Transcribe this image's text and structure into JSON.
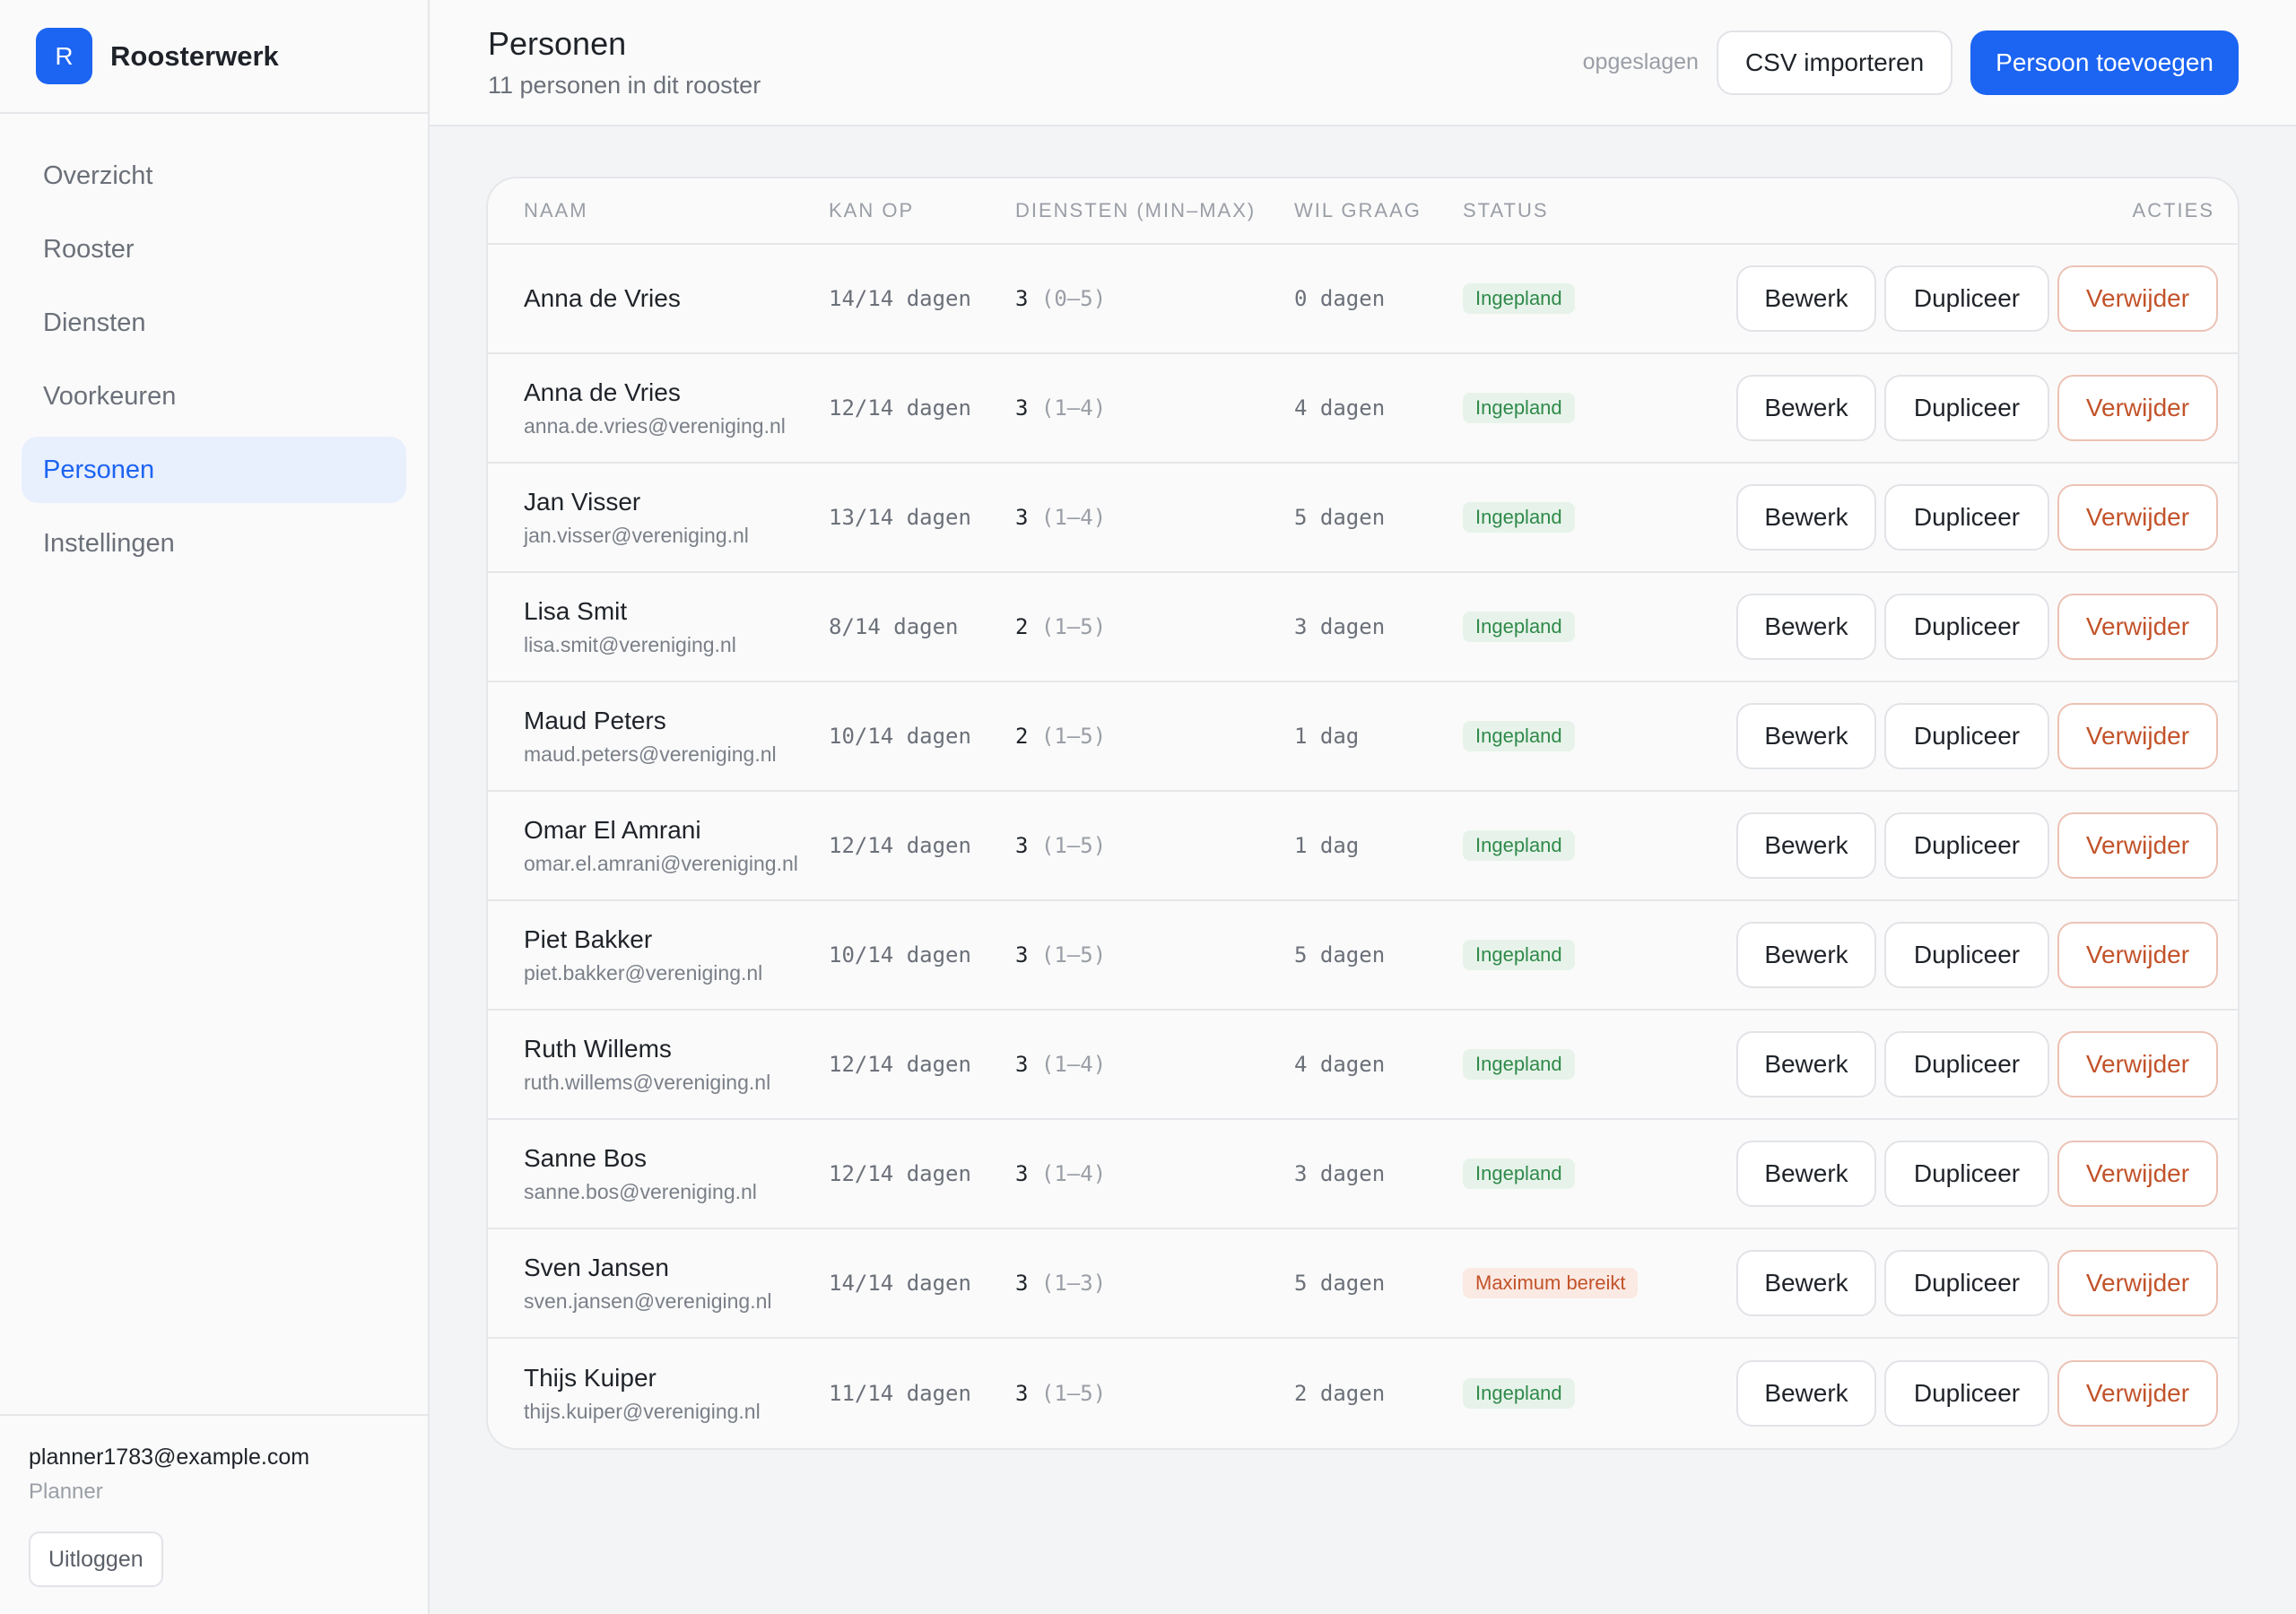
{
  "brand": {
    "logo_letter": "R",
    "name": "Roosterwerk"
  },
  "nav": [
    {
      "label": "Overzicht",
      "active": false
    },
    {
      "label": "Rooster",
      "active": false
    },
    {
      "label": "Diensten",
      "active": false
    },
    {
      "label": "Voorkeuren",
      "active": false
    },
    {
      "label": "Personen",
      "active": true
    },
    {
      "label": "Instellingen",
      "active": false
    }
  ],
  "user": {
    "email": "planner1783@example.com",
    "role": "Planner",
    "logout_label": "Uitloggen"
  },
  "header": {
    "title": "Personen",
    "subtitle": "11 personen in dit rooster",
    "saved_status": "opgeslagen",
    "import_label": "CSV importeren",
    "add_label": "Persoon toevoegen"
  },
  "table": {
    "columns": {
      "name": "NAAM",
      "kan_op": "KAN OP",
      "diensten": "DIENSTEN (MIN–MAX)",
      "wil_graag": "WIL GRAAG",
      "status": "STATUS",
      "acties": "ACTIES"
    },
    "actions": {
      "edit": "Bewerk",
      "duplicate": "Dupliceer",
      "delete": "Verwijder"
    },
    "rows": [
      {
        "name": "Anna de Vries",
        "email": "",
        "kan_op": "14/14 dagen",
        "diensten": "3",
        "range": "(0–5)",
        "wil_graag": "0 dagen",
        "status": "Ingepland",
        "status_type": "ok"
      },
      {
        "name": "Anna de Vries",
        "email": "anna.de.vries@vereniging.nl",
        "kan_op": "12/14 dagen",
        "diensten": "3",
        "range": "(1–4)",
        "wil_graag": "4 dagen",
        "status": "Ingepland",
        "status_type": "ok"
      },
      {
        "name": "Jan Visser",
        "email": "jan.visser@vereniging.nl",
        "kan_op": "13/14 dagen",
        "diensten": "3",
        "range": "(1–4)",
        "wil_graag": "5 dagen",
        "status": "Ingepland",
        "status_type": "ok"
      },
      {
        "name": "Lisa Smit",
        "email": "lisa.smit@vereniging.nl",
        "kan_op": "8/14 dagen",
        "diensten": "2",
        "range": "(1–5)",
        "wil_graag": "3 dagen",
        "status": "Ingepland",
        "status_type": "ok"
      },
      {
        "name": "Maud Peters",
        "email": "maud.peters@vereniging.nl",
        "kan_op": "10/14 dagen",
        "diensten": "2",
        "range": "(1–5)",
        "wil_graag": "1 dag",
        "status": "Ingepland",
        "status_type": "ok"
      },
      {
        "name": "Omar El Amrani",
        "email": "omar.el.amrani@vereniging.nl",
        "kan_op": "12/14 dagen",
        "diensten": "3",
        "range": "(1–5)",
        "wil_graag": "1 dag",
        "status": "Ingepland",
        "status_type": "ok"
      },
      {
        "name": "Piet Bakker",
        "email": "piet.bakker@vereniging.nl",
        "kan_op": "10/14 dagen",
        "diensten": "3",
        "range": "(1–5)",
        "wil_graag": "5 dagen",
        "status": "Ingepland",
        "status_type": "ok"
      },
      {
        "name": "Ruth Willems",
        "email": "ruth.willems@vereniging.nl",
        "kan_op": "12/14 dagen",
        "diensten": "3",
        "range": "(1–4)",
        "wil_graag": "4 dagen",
        "status": "Ingepland",
        "status_type": "ok"
      },
      {
        "name": "Sanne Bos",
        "email": "sanne.bos@vereniging.nl",
        "kan_op": "12/14 dagen",
        "diensten": "3",
        "range": "(1–4)",
        "wil_graag": "3 dagen",
        "status": "Ingepland",
        "status_type": "ok"
      },
      {
        "name": "Sven Jansen",
        "email": "sven.jansen@vereniging.nl",
        "kan_op": "14/14 dagen",
        "diensten": "3",
        "range": "(1–3)",
        "wil_graag": "5 dagen",
        "status": "Maximum bereikt",
        "status_type": "max"
      },
      {
        "name": "Thijs Kuiper",
        "email": "thijs.kuiper@vereniging.nl",
        "kan_op": "11/14 dagen",
        "diensten": "3",
        "range": "(1–5)",
        "wil_graag": "2 dagen",
        "status": "Ingepland",
        "status_type": "ok"
      }
    ]
  },
  "colors": {
    "accent": "#1c64f2",
    "ok_text": "#2f8a4a",
    "ok_bg": "#e7f3ea",
    "warn_text": "#c2532a",
    "warn_bg": "#fbe9e3"
  }
}
